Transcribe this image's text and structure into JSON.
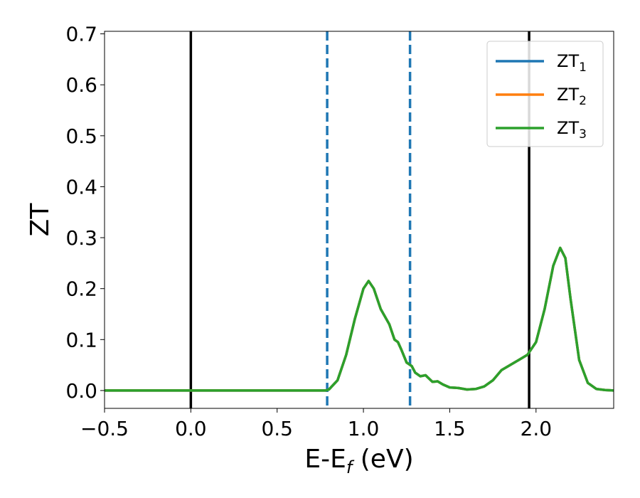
{
  "chart_data": {
    "type": "line",
    "xlabel": "E-E",
    "xlabel_sub": "f",
    "xlabel_unit": " (eV)",
    "ylabel": "ZT",
    "xlim": [
      -0.5,
      2.45
    ],
    "ylim": [
      -0.035,
      0.705
    ],
    "xticks": [
      -0.5,
      0.0,
      0.5,
      1.0,
      1.5,
      2.0
    ],
    "xtick_labels": [
      "−0.5",
      "0.0",
      "0.5",
      "1.0",
      "1.5",
      "2.0"
    ],
    "yticks": [
      0.0,
      0.1,
      0.2,
      0.3,
      0.4,
      0.5,
      0.6,
      0.7
    ],
    "ytick_labels": [
      "0.0",
      "0.1",
      "0.2",
      "0.3",
      "0.4",
      "0.5",
      "0.6",
      "0.7"
    ],
    "grid": false,
    "legend_position": "top-right",
    "vlines": [
      {
        "x": 0.0,
        "style": "solid",
        "color": "#000000"
      },
      {
        "x": 1.96,
        "style": "solid",
        "color": "#000000"
      },
      {
        "x": 0.79,
        "style": "dashed",
        "color": "#1f77b4"
      },
      {
        "x": 1.27,
        "style": "dashed",
        "color": "#1f77b4"
      }
    ],
    "series": [
      {
        "name": "ZT",
        "sub": "1",
        "color": "#1f77b4",
        "x": [
          -0.5,
          0.78,
          0.8,
          0.85,
          0.9,
          0.95,
          1.0,
          1.03,
          1.06,
          1.1,
          1.15,
          1.18,
          1.2,
          1.22,
          1.25,
          1.28,
          1.3,
          1.33,
          1.36,
          1.4,
          1.43,
          1.46,
          1.5,
          1.55,
          1.6,
          1.65,
          1.7,
          1.75,
          1.8,
          1.85,
          1.9,
          1.95,
          2.0,
          2.05,
          2.1,
          2.14,
          2.17,
          2.2,
          2.25,
          2.3,
          2.35,
          2.4,
          2.45
        ],
        "y": [
          0.0,
          0.0,
          0.002,
          0.02,
          0.07,
          0.14,
          0.2,
          0.215,
          0.2,
          0.16,
          0.13,
          0.1,
          0.095,
          0.08,
          0.055,
          0.048,
          0.035,
          0.028,
          0.03,
          0.017,
          0.018,
          0.012,
          0.006,
          0.005,
          0.002,
          0.003,
          0.008,
          0.02,
          0.04,
          0.05,
          0.06,
          0.07,
          0.095,
          0.16,
          0.245,
          0.28,
          0.26,
          0.18,
          0.06,
          0.015,
          0.003,
          0.001,
          0.0
        ]
      },
      {
        "name": "ZT",
        "sub": "2",
        "color": "#ff7f0e",
        "x": [
          -0.5,
          0.78,
          0.8,
          0.85,
          0.9,
          0.95,
          1.0,
          1.03,
          1.06,
          1.1,
          1.15,
          1.18,
          1.2,
          1.22,
          1.25,
          1.28,
          1.3,
          1.33,
          1.36,
          1.4,
          1.43,
          1.46,
          1.5,
          1.55,
          1.6,
          1.65,
          1.7,
          1.75,
          1.8,
          1.85,
          1.9,
          1.95,
          2.0,
          2.05,
          2.1,
          2.14,
          2.17,
          2.2,
          2.25,
          2.3,
          2.35,
          2.4,
          2.45
        ],
        "y": [
          0.0,
          0.0,
          0.002,
          0.02,
          0.07,
          0.14,
          0.2,
          0.215,
          0.2,
          0.16,
          0.13,
          0.1,
          0.095,
          0.08,
          0.055,
          0.048,
          0.035,
          0.028,
          0.03,
          0.017,
          0.018,
          0.012,
          0.006,
          0.005,
          0.002,
          0.003,
          0.008,
          0.02,
          0.04,
          0.05,
          0.06,
          0.07,
          0.095,
          0.16,
          0.245,
          0.28,
          0.26,
          0.18,
          0.06,
          0.015,
          0.003,
          0.001,
          0.0
        ]
      },
      {
        "name": "ZT",
        "sub": "3",
        "color": "#2ca02c",
        "x": [
          -0.5,
          0.78,
          0.8,
          0.85,
          0.9,
          0.95,
          1.0,
          1.03,
          1.06,
          1.1,
          1.15,
          1.18,
          1.2,
          1.22,
          1.25,
          1.28,
          1.3,
          1.33,
          1.36,
          1.4,
          1.43,
          1.46,
          1.5,
          1.55,
          1.6,
          1.65,
          1.7,
          1.75,
          1.8,
          1.85,
          1.9,
          1.95,
          2.0,
          2.05,
          2.1,
          2.14,
          2.17,
          2.2,
          2.25,
          2.3,
          2.35,
          2.4,
          2.45
        ],
        "y": [
          0.0,
          0.0,
          0.002,
          0.02,
          0.07,
          0.14,
          0.2,
          0.215,
          0.2,
          0.16,
          0.13,
          0.1,
          0.095,
          0.08,
          0.055,
          0.048,
          0.035,
          0.028,
          0.03,
          0.017,
          0.018,
          0.012,
          0.006,
          0.005,
          0.002,
          0.003,
          0.008,
          0.02,
          0.04,
          0.05,
          0.06,
          0.07,
          0.095,
          0.16,
          0.245,
          0.28,
          0.26,
          0.18,
          0.06,
          0.015,
          0.003,
          0.001,
          0.0
        ]
      }
    ]
  }
}
